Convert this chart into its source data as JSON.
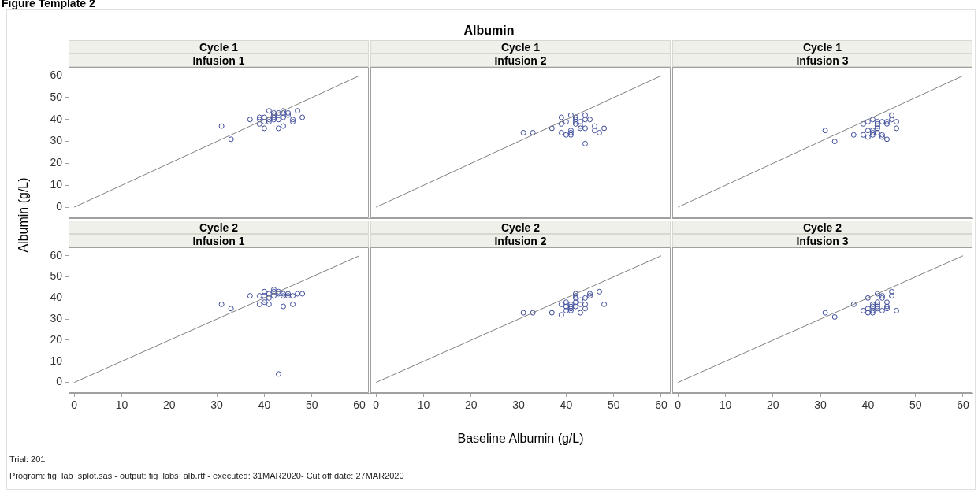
{
  "chart_data": [
    {
      "type": "scatter",
      "title": "Cycle 1",
      "subtitle": "Infusion 1",
      "ylabel": "Albumin (g/L)",
      "annotations": [
        "Figure Template 2",
        "Albumin"
      ],
      "xlim": [
        -1.2,
        62
      ],
      "ylim": [
        -5,
        64
      ],
      "xticks": [
        0,
        10,
        20,
        30,
        40,
        50,
        60
      ],
      "yticks": [
        0,
        10,
        20,
        30,
        40,
        50,
        60
      ],
      "tick_labels": "y",
      "grid": false,
      "legend": false,
      "marker": "circle",
      "series": [
        {
          "type": "line",
          "color": "#808080",
          "x": [
            0,
            60
          ],
          "values": [
            0,
            60
          ],
          "marker": "none"
        },
        {
          "color": "#3b4a9a",
          "x": [
            31,
            33,
            37,
            39,
            39,
            39,
            40,
            40,
            41,
            41,
            41,
            42,
            42,
            42,
            43,
            43,
            43,
            44,
            44,
            44,
            44,
            45,
            45,
            46,
            46,
            47,
            48,
            40,
            42,
            43
          ],
          "values": [
            37,
            31,
            40,
            41,
            40,
            38,
            36,
            41,
            44,
            40,
            39,
            43,
            42,
            41,
            42,
            40,
            36,
            43,
            44,
            41,
            37,
            42,
            43,
            40,
            39,
            44,
            41,
            39,
            40,
            43
          ]
        }
      ]
    },
    {
      "type": "scatter",
      "title": "Cycle 1",
      "subtitle": "Infusion 2",
      "xlim": [
        -1.2,
        62
      ],
      "ylim": [
        -5,
        64
      ],
      "xticks": [
        0,
        10,
        20,
        30,
        40,
        50,
        60
      ],
      "yticks": [
        0,
        10,
        20,
        30,
        40,
        50,
        60
      ],
      "tick_labels": false,
      "grid": false,
      "legend": false,
      "marker": "circle",
      "series": [
        {
          "type": "line",
          "color": "#808080",
          "x": [
            0,
            60
          ],
          "values": [
            0,
            60
          ],
          "marker": "none"
        },
        {
          "color": "#3b4a9a",
          "x": [
            31,
            33,
            37,
            39,
            39,
            39,
            40,
            40,
            41,
            41,
            41,
            41,
            42,
            42,
            42,
            43,
            43,
            43,
            44,
            44,
            44,
            44,
            45,
            46,
            46,
            47,
            48,
            42
          ],
          "values": [
            34,
            34,
            36,
            41,
            38,
            34,
            33,
            39,
            35,
            34,
            33,
            42,
            40,
            41,
            39,
            36,
            39,
            37,
            42,
            40,
            36,
            29,
            40,
            37,
            35,
            34,
            36,
            38
          ]
        }
      ]
    },
    {
      "type": "scatter",
      "title": "Cycle 1",
      "subtitle": "Infusion 3",
      "xlim": [
        -1.2,
        62
      ],
      "ylim": [
        -5,
        64
      ],
      "xticks": [
        0,
        10,
        20,
        30,
        40,
        50,
        60
      ],
      "yticks": [
        0,
        10,
        20,
        30,
        40,
        50,
        60
      ],
      "tick_labels": false,
      "grid": false,
      "legend": false,
      "marker": "circle",
      "series": [
        {
          "type": "line",
          "color": "#808080",
          "x": [
            0,
            60
          ],
          "values": [
            0,
            60
          ],
          "marker": "none"
        },
        {
          "color": "#3b4a9a",
          "x": [
            31,
            33,
            37,
            39,
            39,
            40,
            40,
            40,
            41,
            41,
            41,
            42,
            42,
            42,
            42,
            43,
            43,
            43,
            44,
            44,
            44,
            45,
            45,
            46,
            46,
            41,
            42
          ],
          "values": [
            35,
            30,
            33,
            38,
            33,
            39,
            35,
            32,
            34,
            40,
            33,
            38,
            37,
            36,
            39,
            39,
            33,
            32,
            38,
            39,
            31,
            40,
            42,
            39,
            36,
            35,
            34
          ]
        }
      ]
    },
    {
      "type": "scatter",
      "title": "Cycle 2",
      "subtitle": "Infusion 1",
      "annotations": [
        "Trial: 201",
        "Program: fig_lab_splot.sas - output: fig_labs_alb.rtf - executed: 31MAR2020- Cut off date: 27MAR2020"
      ],
      "xlim": [
        -1.2,
        62
      ],
      "ylim": [
        -5,
        64
      ],
      "xticks": [
        0,
        10,
        20,
        30,
        40,
        50,
        60
      ],
      "yticks": [
        0,
        10,
        20,
        30,
        40,
        50,
        60
      ],
      "grid": false,
      "legend": false,
      "marker": "circle",
      "series": [
        {
          "type": "line",
          "color": "#808080",
          "x": [
            0,
            60
          ],
          "values": [
            0,
            60
          ],
          "marker": "none"
        },
        {
          "color": "#3b4a9a",
          "x": [
            31,
            33,
            37,
            39,
            39,
            40,
            40,
            40,
            41,
            41,
            41,
            42,
            42,
            42,
            43,
            43,
            44,
            44,
            44,
            45,
            45,
            46,
            46,
            47,
            48,
            40,
            43
          ],
          "values": [
            37,
            35,
            41,
            41,
            37,
            39,
            43,
            38,
            42,
            40,
            37,
            44,
            43,
            41,
            42,
            4,
            42,
            41,
            36,
            42,
            41,
            41,
            37,
            42,
            42,
            41,
            43
          ]
        }
      ]
    },
    {
      "type": "scatter",
      "title": "Cycle 2",
      "subtitle": "Infusion 2",
      "xlabel": "Baseline Albumin (g/L)",
      "xlim": [
        -1.2,
        62
      ],
      "ylim": [
        -5,
        64
      ],
      "xticks": [
        0,
        10,
        20,
        30,
        40,
        50,
        60
      ],
      "yticks": [
        0,
        10,
        20,
        30,
        40,
        50,
        60
      ],
      "tick_labels": "x",
      "grid": false,
      "legend": false,
      "marker": "circle",
      "series": [
        {
          "type": "line",
          "color": "#808080",
          "x": [
            0,
            60
          ],
          "values": [
            0,
            60
          ],
          "marker": "none"
        },
        {
          "color": "#3b4a9a",
          "x": [
            31,
            33,
            37,
            39,
            39,
            40,
            40,
            40,
            41,
            41,
            41,
            42,
            42,
            42,
            42,
            43,
            43,
            43,
            44,
            44,
            44,
            45,
            45,
            47,
            48,
            41,
            42
          ],
          "values": [
            33,
            33,
            33,
            37,
            32,
            38,
            36,
            34,
            35,
            34,
            37,
            42,
            40,
            38,
            36,
            39,
            37,
            33,
            40,
            37,
            35,
            41,
            42,
            43,
            37,
            36,
            41
          ]
        }
      ]
    },
    {
      "type": "scatter",
      "title": "Cycle 2",
      "subtitle": "Infusion 3",
      "xlim": [
        -1.2,
        62
      ],
      "ylim": [
        -5,
        64
      ],
      "xticks": [
        0,
        10,
        20,
        30,
        40,
        50,
        60
      ],
      "yticks": [
        0,
        10,
        20,
        30,
        40,
        50,
        60
      ],
      "tick_labels": "x",
      "grid": false,
      "legend": false,
      "marker": "circle",
      "series": [
        {
          "type": "line",
          "color": "#808080",
          "x": [
            0,
            60
          ],
          "values": [
            0,
            60
          ],
          "marker": "none"
        },
        {
          "color": "#3b4a9a",
          "x": [
            31,
            33,
            37,
            39,
            40,
            40,
            40,
            41,
            41,
            41,
            42,
            42,
            42,
            42,
            43,
            43,
            43,
            44,
            44,
            44,
            45,
            45,
            46,
            42,
            41
          ],
          "values": [
            33,
            31,
            37,
            34,
            40,
            35,
            33,
            34,
            36,
            33,
            37,
            36,
            35,
            42,
            41,
            40,
            34,
            38,
            36,
            35,
            43,
            41,
            34,
            38,
            37
          ]
        }
      ]
    }
  ]
}
